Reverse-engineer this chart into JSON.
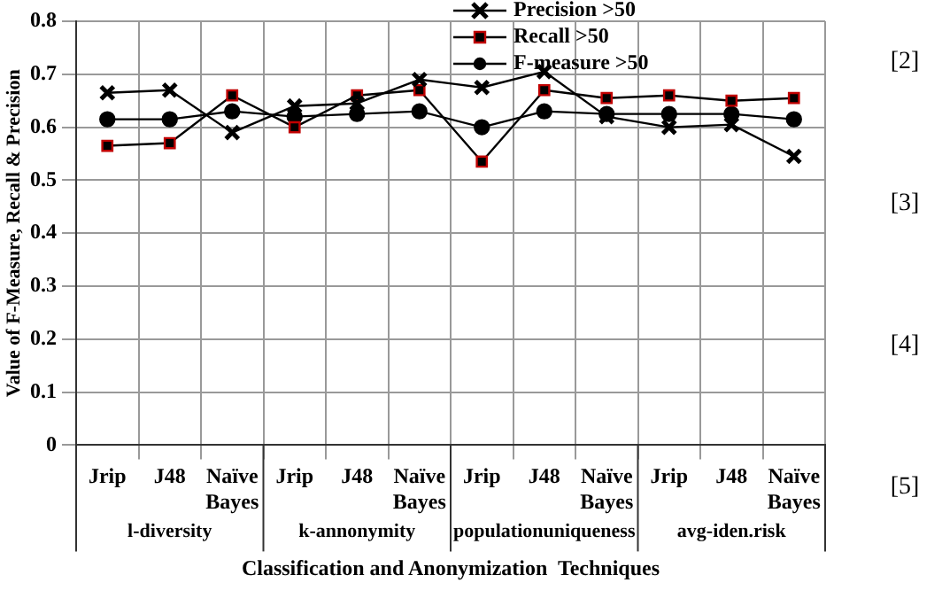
{
  "chart_data": {
    "type": "line",
    "xlabel": "Classification and Anonymization  Techniques",
    "ylabel": "Value of F-Measure, Recall & Precision",
    "categories": [
      "Jrip",
      "J48",
      "Naïve Bayes",
      "Jrip",
      "J48",
      "Naïve Bayes",
      "Jrip",
      "J48",
      "Naïve Bayes",
      "Jrip",
      "J48",
      "Naïve Bayes"
    ],
    "series": [
      {
        "name": "Precision >50",
        "color": "#000000",
        "marker": "cross",
        "values": [
          0.665,
          0.67,
          0.59,
          0.64,
          0.645,
          0.69,
          0.675,
          0.705,
          0.62,
          0.6,
          0.605,
          0.545
        ]
      },
      {
        "name": "Recall >50",
        "color": "#c00000",
        "marker": "square",
        "values": [
          0.565,
          0.57,
          0.66,
          0.6,
          0.66,
          0.67,
          0.535,
          0.67,
          0.655,
          0.66,
          0.65,
          0.655
        ]
      },
      {
        "name": "F-measure >50",
        "color": "#000000",
        "marker": "circle",
        "values": [
          0.615,
          0.615,
          0.63,
          0.62,
          0.625,
          0.63,
          0.6,
          0.63,
          0.625,
          0.625,
          0.625,
          0.615
        ]
      }
    ],
    "ylim": [
      0,
      0.8
    ],
    "yticks": [
      0,
      0.1,
      0.2,
      0.3,
      0.4,
      0.5,
      0.6,
      0.7,
      0.8
    ],
    "grid": true,
    "legend": "top right",
    "annotations": [
      "l-diversity",
      "k-annonymity",
      "populationuniqueness",
      "avg-iden.risk",
      "[2]",
      "[3]",
      "[4]",
      "[5]"
    ]
  }
}
